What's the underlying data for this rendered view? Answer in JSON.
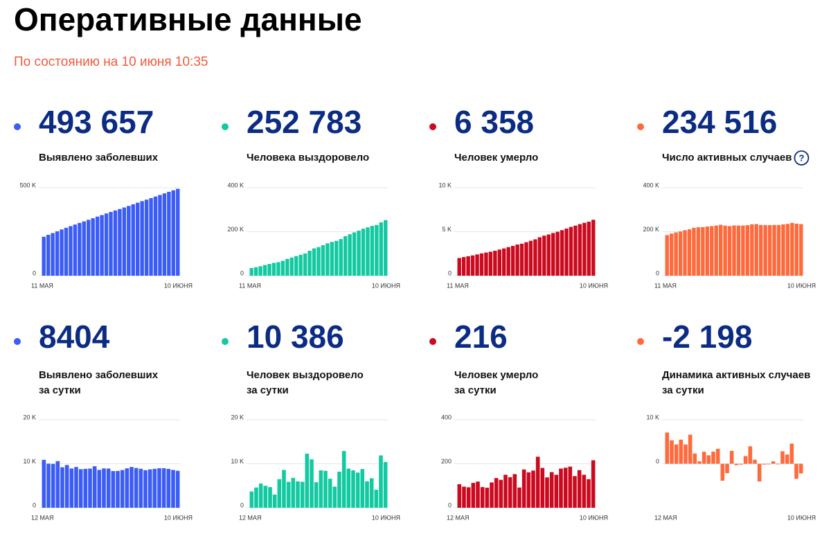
{
  "header": {
    "title": "Оперативные данные",
    "subtitle": "По состоянию на 10 июня 10:35"
  },
  "chart_data": [
    {
      "type": "bar",
      "stat": {
        "value": 493657,
        "label": "493 657"
      },
      "label": [
        "Выявлено заболевших"
      ],
      "color": "#3b5cf6",
      "categories": [
        "11 МАЯ",
        null,
        null,
        null,
        null,
        null,
        null,
        null,
        null,
        null,
        null,
        null,
        null,
        null,
        null,
        null,
        null,
        null,
        null,
        null,
        null,
        null,
        null,
        null,
        null,
        null,
        null,
        null,
        null,
        null,
        "10 ИЮНЯ"
      ],
      "values": [
        221344,
        232243,
        242271,
        252245,
        262843,
        272043,
        281752,
        290678,
        299941,
        308705,
        317554,
        326448,
        335882,
        344481,
        353427,
        362342,
        370680,
        379051,
        387623,
        396575,
        405843,
        414878,
        423741,
        432277,
        441003,
        449858,
        458843,
        467823,
        476658,
        485253,
        493657
      ],
      "ylim": [
        0,
        500000
      ],
      "yticks": [
        0,
        {
          "value": 500000,
          "label": "500 K"
        }
      ],
      "grid": true
    },
    {
      "type": "bar",
      "stat": {
        "value": 252783,
        "label": "252 783"
      },
      "label": [
        "Человека выздоровело"
      ],
      "color": "#13c9a1",
      "categories": [
        "11 МАЯ",
        null,
        null,
        null,
        null,
        null,
        null,
        null,
        null,
        null,
        null,
        null,
        null,
        null,
        null,
        null,
        null,
        null,
        null,
        null,
        null,
        null,
        null,
        null,
        null,
        null,
        null,
        null,
        null,
        null,
        "10 ИЮНЯ"
      ],
      "values": [
        34797,
        38497,
        43097,
        48597,
        53597,
        58297,
        61297,
        67797,
        76397,
        82297,
        89097,
        95097,
        100997,
        113297,
        124297,
        130097,
        138597,
        146997,
        153597,
        158397,
        166597,
        179497,
        188397,
        196897,
        204897,
        213697,
        219697,
        226397,
        230497,
        242397,
        252783
      ],
      "ylim": [
        0,
        400000
      ],
      "yticks": [
        0,
        {
          "value": 200000,
          "label": "200 K"
        },
        {
          "value": 400000,
          "label": "400 K"
        }
      ],
      "grid": true
    },
    {
      "type": "bar",
      "stat": {
        "value": 6358,
        "label": "6 358"
      },
      "label": [
        "Человек умерло"
      ],
      "color": "#cc0a1f",
      "categories": [
        "11 МАЯ",
        null,
        null,
        null,
        null,
        null,
        null,
        null,
        null,
        null,
        null,
        null,
        null,
        null,
        null,
        null,
        null,
        null,
        null,
        null,
        null,
        null,
        null,
        null,
        null,
        null,
        null,
        null,
        null,
        null,
        "10 ИЮНЯ"
      ],
      "values": [
        2009,
        2116,
        2212,
        2305,
        2418,
        2537,
        2631,
        2722,
        2837,
        2972,
        3099,
        3249,
        3388,
        3541,
        3633,
        3807,
        3968,
        4137,
        4369,
        4550,
        4688,
        4850,
        5000,
        5178,
        5360,
        5547,
        5691,
        5862,
        6012,
        6142,
        6358
      ],
      "ylim": [
        0,
        10000
      ],
      "yticks": [
        0,
        {
          "value": 5000,
          "label": "5 K"
        },
        {
          "value": 10000,
          "label": "10 K"
        }
      ],
      "grid": true
    },
    {
      "type": "bar",
      "stat": {
        "value": 234516,
        "label": "234 516"
      },
      "label": [
        "Число активных случаев"
      ],
      "help_icon": "?",
      "color": "#ff6a3d",
      "categories": [
        "11 МАЯ",
        null,
        null,
        null,
        null,
        null,
        null,
        null,
        null,
        null,
        null,
        null,
        null,
        null,
        null,
        null,
        null,
        null,
        null,
        null,
        null,
        null,
        null,
        null,
        null,
        null,
        null,
        null,
        null,
        null,
        "10 ИЮНЯ"
      ],
      "values": [
        184538,
        191630,
        196962,
        201343,
        206828,
        211209,
        217824,
        220159,
        220707,
        223436,
        225358,
        228102,
        231497,
        227643,
        225497,
        228438,
        228115,
        227917,
        229657,
        233628,
        234558,
        230531,
        230344,
        230202,
        230746,
        230614,
        233455,
        235564,
        240149,
        236714,
        234516
      ],
      "ylim": [
        0,
        400000
      ],
      "yticks": [
        0,
        {
          "value": 200000,
          "label": "200 K"
        },
        {
          "value": 400000,
          "label": "400 K"
        }
      ],
      "grid": true
    },
    {
      "type": "bar",
      "stat": 8404,
      "label": [
        "Выявлено заболевших",
        "за сутки"
      ],
      "color": "#3b5cf6",
      "categories": [
        "12 МАЯ",
        null,
        null,
        null,
        null,
        null,
        null,
        null,
        null,
        null,
        null,
        null,
        null,
        null,
        null,
        null,
        null,
        null,
        null,
        null,
        null,
        null,
        null,
        null,
        null,
        null,
        null,
        null,
        null,
        "10 ИЮНЯ"
      ],
      "values": [
        10899,
        10028,
        9974,
        10598,
        9200,
        9709,
        8926,
        9263,
        8764,
        8849,
        8894,
        9434,
        8599,
        8946,
        8915,
        8338,
        8371,
        8572,
        8952,
        9268,
        9035,
        8863,
        8536,
        8726,
        8855,
        8985,
        8980,
        8835,
        8595,
        8404
      ],
      "ylim": [
        0,
        20000
      ],
      "yticks": [
        0,
        {
          "value": 10000,
          "label": "10 K"
        },
        {
          "value": 20000,
          "label": "20 K"
        }
      ],
      "grid": true
    },
    {
      "type": "bar",
      "stat": {
        "value": 10386,
        "label": "10 386"
      },
      "label": [
        "Человек выздоровело",
        "за сутки"
      ],
      "color": "#13c9a1",
      "categories": [
        "12 МАЯ",
        null,
        null,
        null,
        null,
        null,
        null,
        null,
        null,
        null,
        null,
        null,
        null,
        null,
        null,
        null,
        null,
        null,
        null,
        null,
        null,
        null,
        null,
        null,
        null,
        null,
        null,
        null,
        null,
        "10 ИЮНЯ"
      ],
      "values": [
        3700,
        4600,
        5500,
        5000,
        4700,
        3000,
        6500,
        8600,
        5900,
        6800,
        6000,
        5900,
        12300,
        11000,
        5800,
        8500,
        8400,
        6600,
        4800,
        8200,
        12900,
        8900,
        8500,
        8000,
        8800,
        6000,
        6700,
        4100,
        11900,
        10386
      ],
      "ylim": [
        0,
        20000
      ],
      "yticks": [
        0,
        {
          "value": 10000,
          "label": "10 K"
        },
        {
          "value": 20000,
          "label": "20 K"
        }
      ],
      "grid": true
    },
    {
      "type": "bar",
      "stat": 216,
      "label": [
        "Человек умерло",
        "за сутки"
      ],
      "color": "#cc0a1f",
      "categories": [
        "12 МАЯ",
        null,
        null,
        null,
        null,
        null,
        null,
        null,
        null,
        null,
        null,
        null,
        null,
        null,
        null,
        null,
        null,
        null,
        null,
        null,
        null,
        null,
        null,
        null,
        null,
        null,
        null,
        null,
        null,
        "10 ИЮНЯ"
      ],
      "values": [
        107,
        96,
        93,
        113,
        119,
        94,
        91,
        115,
        135,
        127,
        150,
        139,
        153,
        92,
        174,
        161,
        169,
        232,
        181,
        138,
        162,
        150,
        178,
        182,
        187,
        144,
        171,
        150,
        130,
        216
      ],
      "ylim": [
        0,
        400
      ],
      "yticks": [
        0,
        200,
        400
      ],
      "grid": true
    },
    {
      "type": "bar",
      "stat": {
        "value": -2198,
        "label": "-2 198"
      },
      "label": [
        "Динамика активных случаев",
        "за сутки"
      ],
      "color": "#ff6a3d",
      "categories": [
        "12 МАЯ",
        null,
        null,
        null,
        null,
        null,
        null,
        null,
        null,
        null,
        null,
        null,
        null,
        null,
        null,
        null,
        null,
        null,
        null,
        null,
        null,
        null,
        null,
        null,
        null,
        null,
        null,
        null,
        null,
        "10 ИЮНЯ"
      ],
      "values": [
        7092,
        5332,
        4381,
        5485,
        4381,
        6615,
        2335,
        548,
        2729,
        1922,
        2744,
        3395,
        -3854,
        -2146,
        2941,
        -323,
        -198,
        1740,
        3971,
        930,
        -4027,
        -187,
        -142,
        544,
        -132,
        2841,
        2109,
        4585,
        -3435,
        -2198
      ],
      "ylim": [
        -10000,
        10000
      ],
      "yticks": [
        0,
        {
          "value": 10000,
          "label": "10 K"
        }
      ],
      "grid": true
    }
  ]
}
